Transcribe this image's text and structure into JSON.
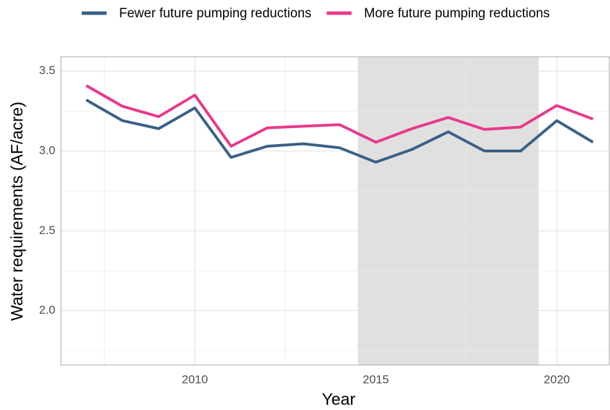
{
  "chart_data": {
    "type": "line",
    "x_label": "Year",
    "y_label": "Water requirements (AF/acre)",
    "x": [
      2007,
      2008,
      2009,
      2010,
      2011,
      2012,
      2013,
      2014,
      2015,
      2016,
      2017,
      2018,
      2019,
      2020,
      2021
    ],
    "series": [
      {
        "name": "Fewer future pumping reductions",
        "color": "#3a6186",
        "values": [
          3.32,
          3.19,
          3.14,
          3.27,
          2.96,
          3.03,
          3.045,
          3.02,
          2.93,
          3.01,
          3.12,
          3.0,
          3.0,
          3.19,
          3.055
        ]
      },
      {
        "name": "More future pumping reductions",
        "color": "#e8398a",
        "values": [
          3.41,
          3.28,
          3.215,
          3.35,
          3.03,
          3.145,
          3.155,
          3.165,
          3.055,
          3.14,
          3.21,
          3.135,
          3.15,
          3.285,
          3.2
        ]
      }
    ],
    "shaded_span": [
      2014.5,
      2019.5
    ],
    "shade_color": "#e0e0e0",
    "xlim": [
      2006.3,
      2021.45
    ],
    "xticks": [
      2010,
      2015,
      2020
    ],
    "ylim": [
      1.66,
      3.59
    ],
    "yticks": [
      {
        "value": 2.0,
        "label": "2.0"
      },
      2.5,
      {
        "value": 3.0,
        "label": "3.0"
      },
      3.5
    ],
    "grid": true,
    "legend": "top"
  }
}
